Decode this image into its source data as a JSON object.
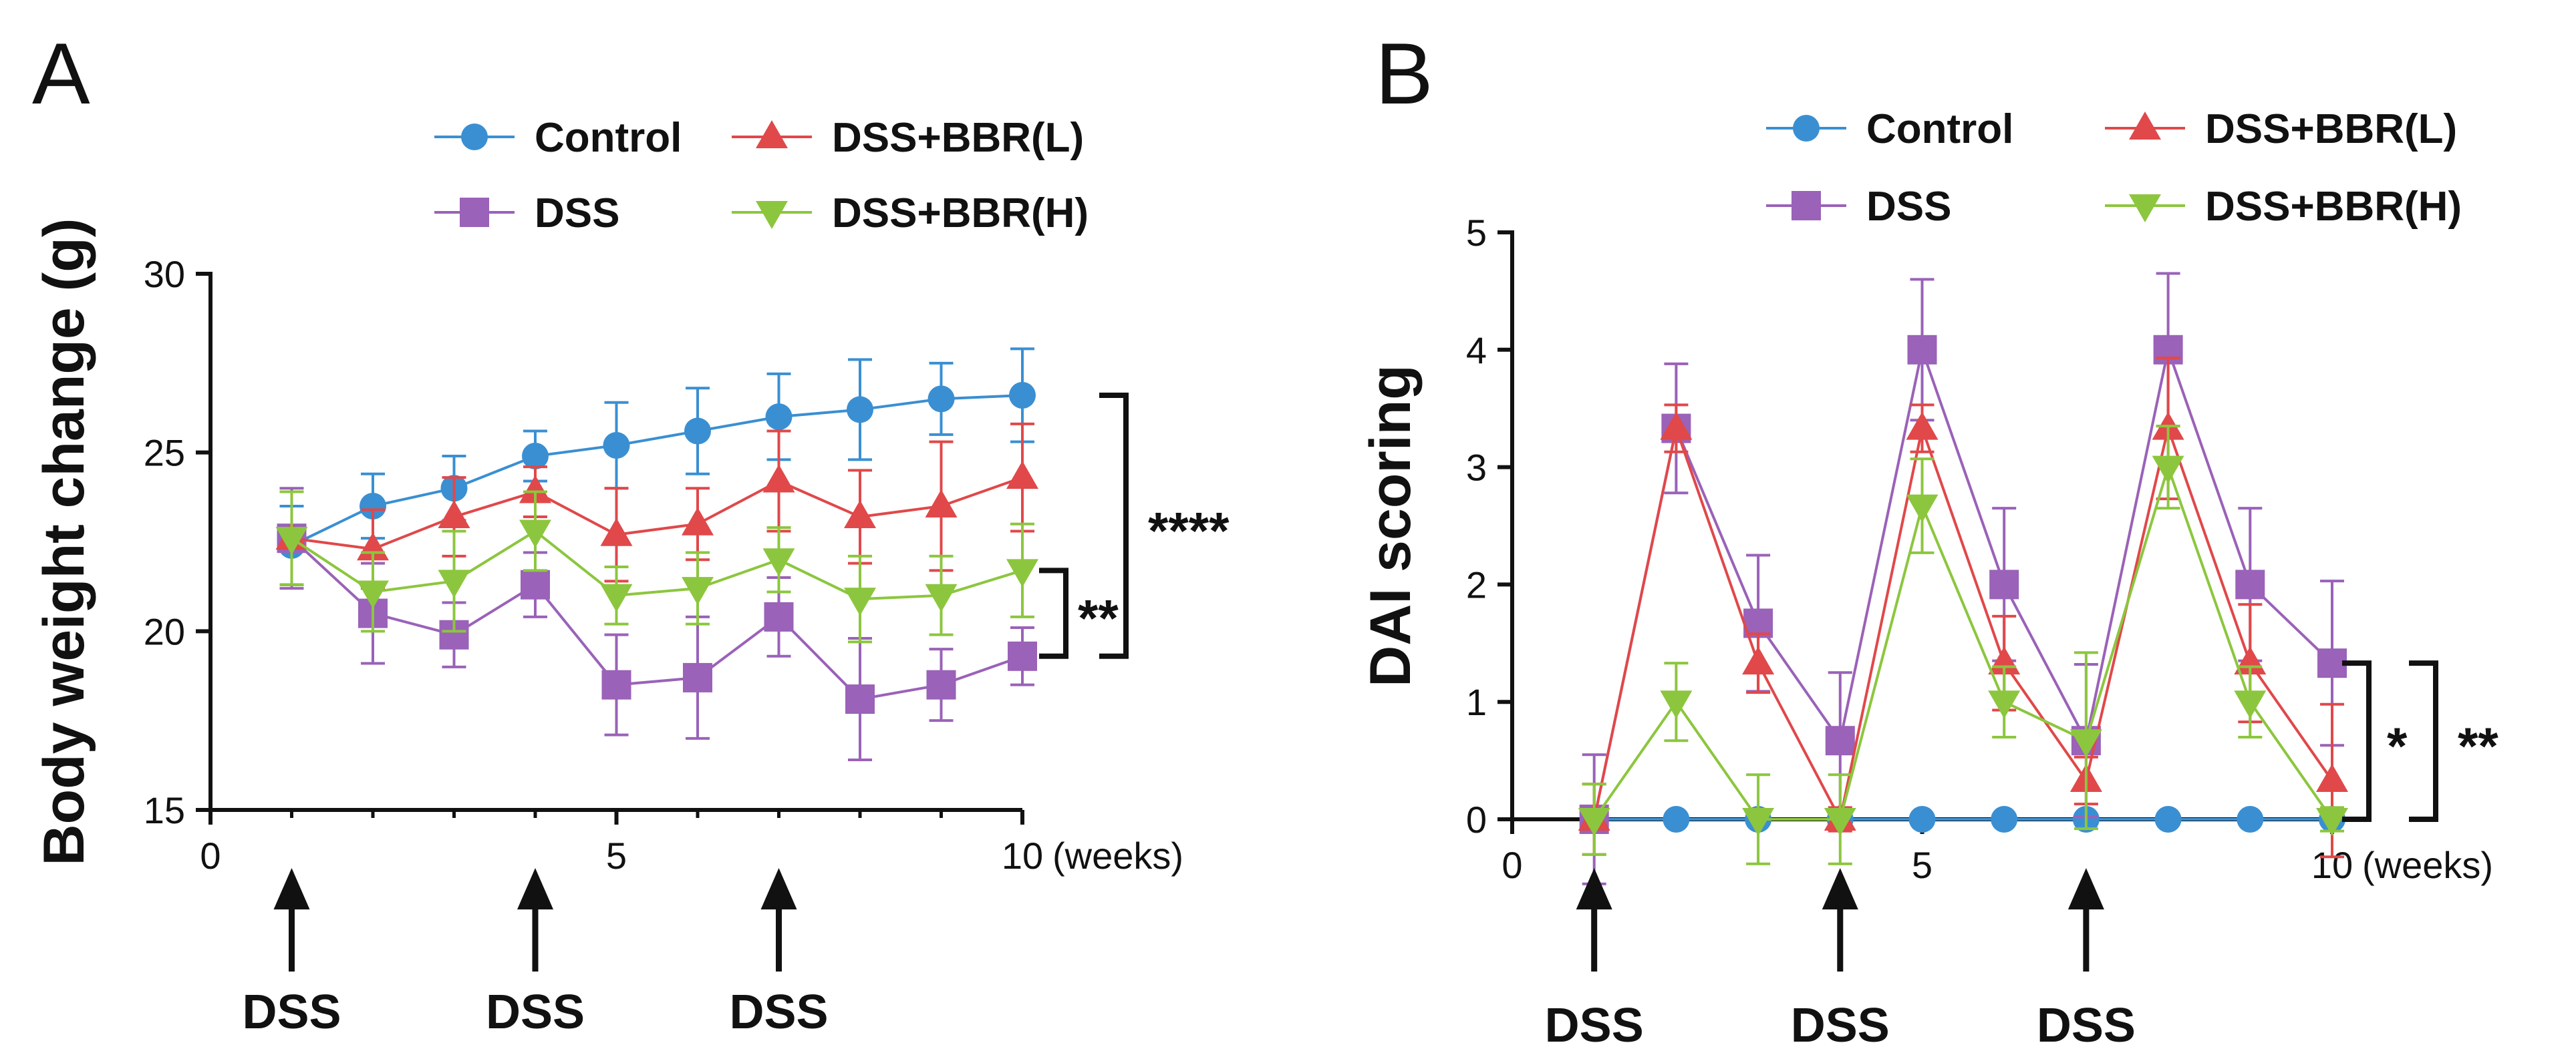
{
  "chart_data": [
    {
      "panel_label": "A",
      "type": "line",
      "title": "",
      "xlabel": "",
      "ylabel": "Body weight change (g)",
      "x_unit": "(weeks)",
      "xlim": [
        0,
        10
      ],
      "ylim": [
        15,
        30
      ],
      "xticks": [
        0,
        5,
        10
      ],
      "yticks": [
        15,
        20,
        25,
        30
      ],
      "grid": false,
      "legend": "top",
      "series": [
        {
          "name": "Control",
          "color": "#3a8fd2",
          "marker": "circle",
          "x": [
            1,
            2,
            3,
            4,
            5,
            6,
            7,
            8,
            9,
            10
          ],
          "y": [
            22.4,
            23.5,
            24.0,
            24.9,
            25.2,
            25.6,
            26.0,
            26.2,
            26.5,
            26.6
          ],
          "err": [
            1.1,
            0.9,
            0.9,
            0.7,
            1.2,
            1.2,
            1.2,
            1.4,
            1.0,
            1.3
          ]
        },
        {
          "name": "DSS",
          "color": "#9a62b8",
          "marker": "square",
          "x": [
            1,
            2,
            3,
            4,
            5,
            6,
            7,
            8,
            9,
            10
          ],
          "y": [
            22.6,
            20.5,
            19.9,
            21.3,
            18.5,
            18.7,
            20.4,
            18.1,
            18.5,
            19.3
          ],
          "err": [
            1.4,
            1.4,
            0.9,
            0.9,
            1.4,
            1.7,
            1.1,
            1.7,
            1.0,
            0.8
          ]
        },
        {
          "name": "DSS+BBR(L)",
          "color": "#e0484a",
          "marker": "triangle-up",
          "x": [
            1,
            2,
            3,
            4,
            5,
            6,
            7,
            8,
            9,
            10
          ],
          "y": [
            22.6,
            22.3,
            23.2,
            23.9,
            22.7,
            23.0,
            24.2,
            23.2,
            23.5,
            24.3
          ],
          "err": [
            1.3,
            1.1,
            1.1,
            0.7,
            1.3,
            1.0,
            1.4,
            1.3,
            1.8,
            1.5
          ]
        },
        {
          "name": "DSS+BBR(H)",
          "color": "#8cc63e",
          "marker": "triangle-down",
          "x": [
            1,
            2,
            3,
            4,
            5,
            6,
            7,
            8,
            9,
            10
          ],
          "y": [
            22.6,
            21.1,
            21.4,
            22.8,
            21.0,
            21.2,
            22.0,
            20.9,
            21.0,
            21.7
          ],
          "err": [
            1.3,
            1.1,
            1.4,
            1.1,
            0.8,
            1.0,
            0.9,
            1.2,
            1.1,
            1.3
          ]
        }
      ],
      "arrows": [
        {
          "x": 1,
          "label": "DSS"
        },
        {
          "x": 4,
          "label": "DSS"
        },
        {
          "x": 7,
          "label": "DSS"
        }
      ],
      "significance": [
        {
          "between": [
            "DSS+BBR(H)",
            "DSS"
          ],
          "label": "**",
          "bracket": "inner"
        },
        {
          "between": [
            "Control",
            "DSS"
          ],
          "label": "****",
          "bracket": "outer"
        }
      ]
    },
    {
      "panel_label": "B",
      "type": "line",
      "title": "",
      "xlabel": "",
      "ylabel": "DAI scoring",
      "x_unit": "(weeks)",
      "xlim": [
        0,
        10
      ],
      "ylim": [
        0,
        5
      ],
      "xticks": [
        0,
        5,
        10
      ],
      "yticks": [
        0,
        1,
        2,
        3,
        4,
        5
      ],
      "grid": false,
      "legend": "top",
      "series": [
        {
          "name": "Control",
          "color": "#3a8fd2",
          "marker": "circle",
          "x": [
            1,
            2,
            3,
            4,
            5,
            6,
            7,
            8,
            9,
            10
          ],
          "y": [
            0,
            0,
            0,
            0,
            0,
            0,
            0,
            0,
            0,
            0
          ],
          "err": [
            0,
            0,
            0,
            0,
            0,
            0,
            0,
            0,
            0,
            0
          ]
        },
        {
          "name": "DSS",
          "color": "#9a62b8",
          "marker": "square",
          "x": [
            1,
            2,
            3,
            4,
            5,
            6,
            7,
            8,
            9,
            10
          ],
          "y": [
            0,
            3.33,
            1.67,
            0.67,
            4.0,
            2.0,
            0.67,
            4.0,
            2.0,
            1.33
          ],
          "err": [
            0.55,
            0.55,
            0.58,
            0.58,
            0.6,
            0.65,
            0.65,
            0.65,
            0.65,
            0.7
          ]
        },
        {
          "name": "DSS+BBR(L)",
          "color": "#e0484a",
          "marker": "triangle-up",
          "x": [
            1,
            2,
            3,
            4,
            5,
            6,
            7,
            8,
            9,
            10
          ],
          "y": [
            0,
            3.33,
            1.33,
            0,
            3.33,
            1.33,
            0.33,
            3.33,
            1.33,
            0.33
          ],
          "err": [
            0.3,
            0.2,
            0.25,
            0.1,
            0.2,
            0.4,
            0.2,
            0.6,
            0.5,
            0.65
          ]
        },
        {
          "name": "DSS+BBR(H)",
          "color": "#8cc63e",
          "marker": "triangle-down",
          "x": [
            1,
            2,
            3,
            4,
            5,
            6,
            7,
            8,
            9,
            10
          ],
          "y": [
            0,
            1.0,
            0,
            0,
            2.67,
            1.0,
            0.67,
            3.0,
            1.0,
            0
          ],
          "err": [
            0.3,
            0.33,
            0.38,
            0.38,
            0.4,
            0.3,
            0.75,
            0.35,
            0.3,
            0.1
          ]
        }
      ],
      "arrows": [
        {
          "x": 1,
          "label": "DSS"
        },
        {
          "x": 4,
          "label": "DSS"
        },
        {
          "x": 7,
          "label": "DSS"
        }
      ],
      "significance": [
        {
          "between": [
            "DSS+BBR(H)",
            "DSS"
          ],
          "label": "*",
          "bracket": "inner"
        },
        {
          "between": [
            "Control",
            "DSS"
          ],
          "label": "**",
          "bracket": "outer"
        }
      ]
    }
  ]
}
